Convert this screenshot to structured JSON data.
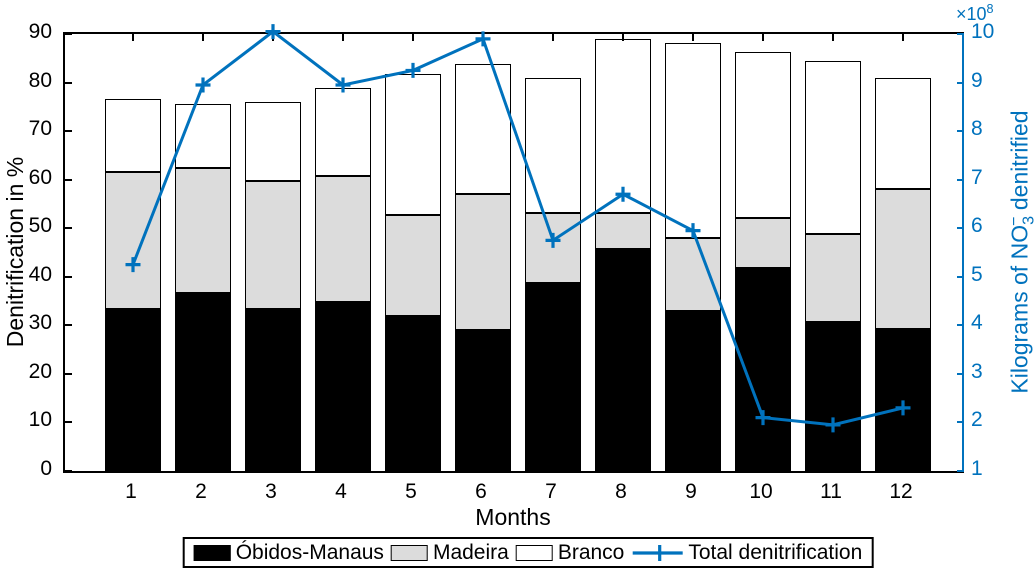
{
  "colors": {
    "accent_blue": "#0072BD",
    "bar_black": "#000000",
    "bar_gray": "#DCDCDC",
    "bar_white": "#FFFFFF",
    "background": "#FFFFFF"
  },
  "chart_data": {
    "type": "bar",
    "subtype": "stacked-bars-with-line-overlay",
    "categories": [
      1,
      2,
      3,
      4,
      5,
      6,
      7,
      8,
      9,
      10,
      11,
      12
    ],
    "xlabel": "Months",
    "left_axis": {
      "label": "Denitrification in %",
      "range": [
        0,
        90
      ],
      "ticks": [
        0,
        10,
        20,
        30,
        40,
        50,
        60,
        70,
        80,
        90
      ]
    },
    "right_axis": {
      "label": "Kilograms of NO₃⁻ denitrified",
      "multiplier": "×10⁸",
      "range": [
        1,
        10
      ],
      "ticks": [
        1,
        2,
        3,
        4,
        5,
        6,
        7,
        8,
        9,
        10
      ],
      "color": "#0072BD"
    },
    "series": [
      {
        "name": "Óbidos-Manaus",
        "type": "bar-stack",
        "axis": "left",
        "color": "#000000",
        "values": [
          33.4,
          36.6,
          33.3,
          34.8,
          32.0,
          29.0,
          38.8,
          45.7,
          32.9,
          41.8,
          30.7,
          29.3
        ]
      },
      {
        "name": "Madeira",
        "type": "bar-stack",
        "axis": "left",
        "color": "#DCDCDC",
        "values": [
          28.1,
          25.8,
          26.4,
          26.0,
          20.7,
          28.1,
          14.3,
          7.4,
          15.0,
          10.4,
          18.1,
          28.7
        ]
      },
      {
        "name": "Branco",
        "type": "bar-stack",
        "axis": "left",
        "color": "#FFFFFF",
        "values": [
          15.1,
          13.2,
          16.4,
          18.0,
          29.0,
          26.7,
          27.8,
          35.8,
          40.3,
          34.0,
          35.6,
          22.9
        ]
      },
      {
        "name": "Total denitrification",
        "type": "line",
        "marker": "plus",
        "axis": "right",
        "color": "#0072BD",
        "values": [
          5.25,
          8.95,
          10.05,
          8.95,
          9.25,
          9.9,
          5.75,
          6.7,
          5.95,
          2.1,
          1.95,
          2.3
        ]
      }
    ],
    "stack_totals": [
      76.6,
      75.6,
      76.1,
      78.8,
      81.7,
      83.8,
      80.9,
      88.9,
      88.2,
      86.2,
      84.4,
      80.9
    ],
    "legend_position": "bottom-center",
    "grid": false
  }
}
